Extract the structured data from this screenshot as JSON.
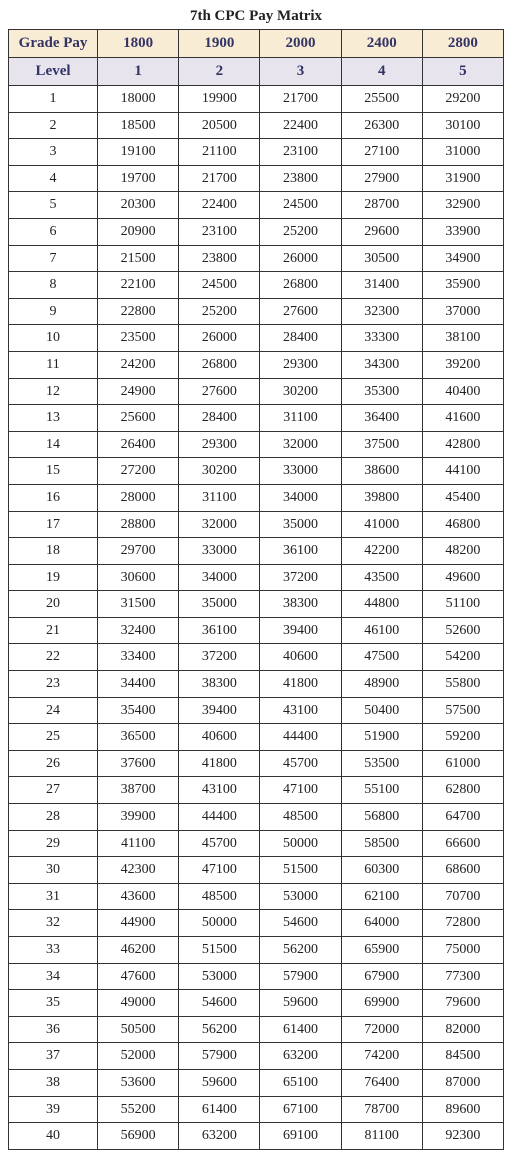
{
  "title": "7th CPC Pay Matrix",
  "header": {
    "gradePayLabel": "Grade Pay",
    "levelLabel": "Level",
    "gradePays": [
      "1800",
      "1900",
      "2000",
      "2400",
      "2800"
    ],
    "levels": [
      "1",
      "2",
      "3",
      "4",
      "5"
    ]
  },
  "rows": [
    {
      "label": "1",
      "values": [
        "18000",
        "19900",
        "21700",
        "25500",
        "29200"
      ]
    },
    {
      "label": "2",
      "values": [
        "18500",
        "20500",
        "22400",
        "26300",
        "30100"
      ]
    },
    {
      "label": "3",
      "values": [
        "19100",
        "21100",
        "23100",
        "27100",
        "31000"
      ]
    },
    {
      "label": "4",
      "values": [
        "19700",
        "21700",
        "23800",
        "27900",
        "31900"
      ]
    },
    {
      "label": "5",
      "values": [
        "20300",
        "22400",
        "24500",
        "28700",
        "32900"
      ]
    },
    {
      "label": "6",
      "values": [
        "20900",
        "23100",
        "25200",
        "29600",
        "33900"
      ]
    },
    {
      "label": "7",
      "values": [
        "21500",
        "23800",
        "26000",
        "30500",
        "34900"
      ]
    },
    {
      "label": "8",
      "values": [
        "22100",
        "24500",
        "26800",
        "31400",
        "35900"
      ]
    },
    {
      "label": "9",
      "values": [
        "22800",
        "25200",
        "27600",
        "32300",
        "37000"
      ]
    },
    {
      "label": "10",
      "values": [
        "23500",
        "26000",
        "28400",
        "33300",
        "38100"
      ]
    },
    {
      "label": "11",
      "values": [
        "24200",
        "26800",
        "29300",
        "34300",
        "39200"
      ]
    },
    {
      "label": "12",
      "values": [
        "24900",
        "27600",
        "30200",
        "35300",
        "40400"
      ]
    },
    {
      "label": "13",
      "values": [
        "25600",
        "28400",
        "31100",
        "36400",
        "41600"
      ]
    },
    {
      "label": "14",
      "values": [
        "26400",
        "29300",
        "32000",
        "37500",
        "42800"
      ]
    },
    {
      "label": "15",
      "values": [
        "27200",
        "30200",
        "33000",
        "38600",
        "44100"
      ]
    },
    {
      "label": "16",
      "values": [
        "28000",
        "31100",
        "34000",
        "39800",
        "45400"
      ]
    },
    {
      "label": "17",
      "values": [
        "28800",
        "32000",
        "35000",
        "41000",
        "46800"
      ]
    },
    {
      "label": "18",
      "values": [
        "29700",
        "33000",
        "36100",
        "42200",
        "48200"
      ]
    },
    {
      "label": "19",
      "values": [
        "30600",
        "34000",
        "37200",
        "43500",
        "49600"
      ]
    },
    {
      "label": "20",
      "values": [
        "31500",
        "35000",
        "38300",
        "44800",
        "51100"
      ]
    },
    {
      "label": "21",
      "values": [
        "32400",
        "36100",
        "39400",
        "46100",
        "52600"
      ]
    },
    {
      "label": "22",
      "values": [
        "33400",
        "37200",
        "40600",
        "47500",
        "54200"
      ]
    },
    {
      "label": "23",
      "values": [
        "34400",
        "38300",
        "41800",
        "48900",
        "55800"
      ]
    },
    {
      "label": "24",
      "values": [
        "35400",
        "39400",
        "43100",
        "50400",
        "57500"
      ]
    },
    {
      "label": "25",
      "values": [
        "36500",
        "40600",
        "44400",
        "51900",
        "59200"
      ]
    },
    {
      "label": "26",
      "values": [
        "37600",
        "41800",
        "45700",
        "53500",
        "61000"
      ]
    },
    {
      "label": "27",
      "values": [
        "38700",
        "43100",
        "47100",
        "55100",
        "62800"
      ]
    },
    {
      "label": "28",
      "values": [
        "39900",
        "44400",
        "48500",
        "56800",
        "64700"
      ]
    },
    {
      "label": "29",
      "values": [
        "41100",
        "45700",
        "50000",
        "58500",
        "66600"
      ]
    },
    {
      "label": "30",
      "values": [
        "42300",
        "47100",
        "51500",
        "60300",
        "68600"
      ]
    },
    {
      "label": "31",
      "values": [
        "43600",
        "48500",
        "53000",
        "62100",
        "70700"
      ]
    },
    {
      "label": "32",
      "values": [
        "44900",
        "50000",
        "54600",
        "64000",
        "72800"
      ]
    },
    {
      "label": "33",
      "values": [
        "46200",
        "51500",
        "56200",
        "65900",
        "75000"
      ]
    },
    {
      "label": "34",
      "values": [
        "47600",
        "53000",
        "57900",
        "67900",
        "77300"
      ]
    },
    {
      "label": "35",
      "values": [
        "49000",
        "54600",
        "59600",
        "69900",
        "79600"
      ]
    },
    {
      "label": "36",
      "values": [
        "50500",
        "56200",
        "61400",
        "72000",
        "82000"
      ]
    },
    {
      "label": "37",
      "values": [
        "52000",
        "57900",
        "63200",
        "74200",
        "84500"
      ]
    },
    {
      "label": "38",
      "values": [
        "53600",
        "59600",
        "65100",
        "76400",
        "87000"
      ]
    },
    {
      "label": "39",
      "values": [
        "55200",
        "61400",
        "67100",
        "78700",
        "89600"
      ]
    },
    {
      "label": "40",
      "values": [
        "56900",
        "63200",
        "69100",
        "81100",
        "92300"
      ]
    }
  ],
  "style": {
    "headerRow1Bg": "#f8ecd4",
    "headerRow2Bg": "#e8e4ee",
    "borderColor": "#333333",
    "headerTextColor": "#333366",
    "bodyTextColor": "#222222",
    "titleFontSize": 15,
    "cellFontSize": 14
  }
}
